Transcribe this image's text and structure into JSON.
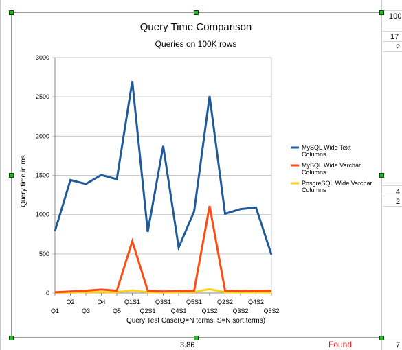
{
  "spreadsheet": {
    "cells_right": [
      "100",
      "17",
      "2",
      "4",
      "2",
      "7"
    ],
    "cell_bottom_mid": "3.86",
    "cell_found": "Found"
  },
  "colors": {
    "mysql_text": "#1f5a9a",
    "mysql_varchar": "#ff4a12",
    "postgres_varchar": "#ffd21a",
    "grid": "#c8c8c8",
    "axis": "#888888",
    "selection_handle": "#22bb22"
  },
  "chart_data": {
    "type": "line",
    "title": "Query Time Comparison",
    "subtitle": "Queries on 100K rows",
    "xlabel": "Query Test Case(Q=N terms, S=N sort terms)",
    "ylabel": "Query time in ms",
    "ylim": [
      0,
      3000
    ],
    "yticks": [
      0,
      500,
      1000,
      1500,
      2000,
      2500,
      3000
    ],
    "grid": true,
    "legend_position": "right",
    "categories": [
      "Q1",
      "Q2",
      "Q3",
      "Q4",
      "Q5",
      "Q1S1",
      "Q2S1",
      "Q3S1",
      "Q4S1",
      "Q5S1",
      "Q1S2",
      "Q2S2",
      "Q3S2",
      "Q4S2",
      "Q5S2"
    ],
    "series": [
      {
        "name": "MySQL Wide Text Columns",
        "color": "#1f5a9a",
        "values": [
          790,
          1440,
          1390,
          1505,
          1450,
          2700,
          780,
          1875,
          580,
          1040,
          2510,
          1010,
          1070,
          1090,
          490
        ]
      },
      {
        "name": "MySQL Wide Varchar Columns",
        "color": "#ff4a12",
        "values": [
          10,
          20,
          30,
          45,
          30,
          660,
          30,
          20,
          25,
          30,
          1110,
          30,
          25,
          30,
          30
        ]
      },
      {
        "name": "PosgreSQL Wide Varchar Columns",
        "color": "#ffd21a",
        "values": [
          5,
          8,
          10,
          12,
          10,
          35,
          10,
          8,
          10,
          12,
          50,
          10,
          8,
          10,
          8
        ]
      }
    ]
  }
}
